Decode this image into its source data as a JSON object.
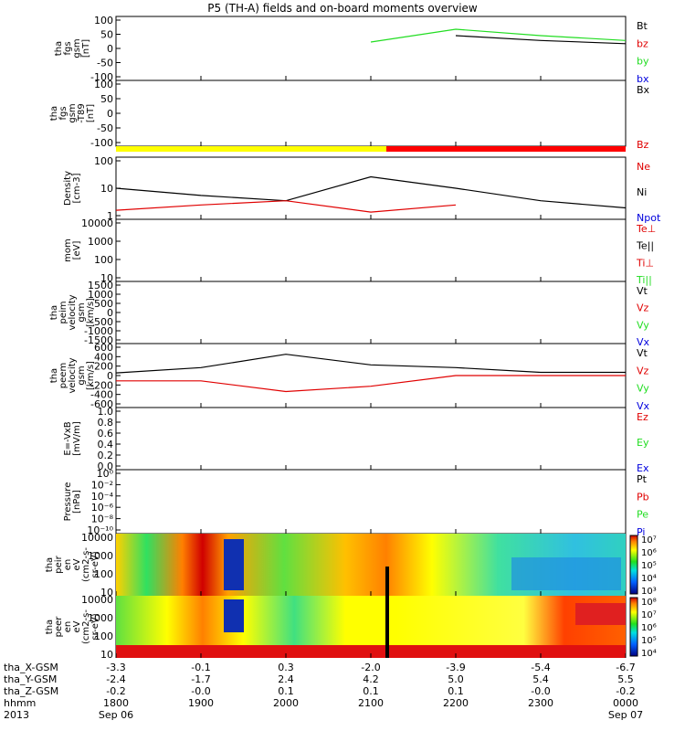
{
  "title": "P5 (TH-A) fields and on-board moments overview",
  "colors": {
    "black": "#000000",
    "red": "#e00000",
    "green": "#22dd22",
    "blue": "#0000dd",
    "yellow": "#ffff00",
    "barRed": "#ff0000"
  },
  "panels": [
    {
      "id": "fgs",
      "ylabel": [
        "tha",
        "fgs",
        "gsm",
        "[nT]"
      ],
      "ticks": [
        "100",
        "50",
        "0",
        "-50",
        "-100"
      ],
      "legend": [
        {
          "text": "Bt",
          "color": "#000000"
        },
        {
          "text": "bz",
          "color": "#e00000"
        },
        {
          "text": "by",
          "color": "#22dd22"
        },
        {
          "text": "bx",
          "color": "#0000dd"
        }
      ]
    },
    {
      "id": "fgs-t89",
      "ylabel": [
        "tha",
        "fgs",
        "gsm",
        "-T89",
        "[nT]"
      ],
      "ticks": [
        "100",
        "50",
        "0",
        "-50",
        "-100"
      ],
      "legend": [
        {
          "text": "Bx",
          "color": "#000000"
        },
        {
          "text": "Bz",
          "color": "#e00000"
        }
      ]
    },
    {
      "id": "density",
      "ylabel": [
        "Density",
        "[cm-3]"
      ],
      "ticks": [
        "100",
        "10",
        "1"
      ],
      "legend": [
        {
          "text": "Ne",
          "color": "#e00000"
        },
        {
          "text": "Ni",
          "color": "#000000"
        },
        {
          "text": "Npot",
          "color": "#0000dd"
        }
      ]
    },
    {
      "id": "temp",
      "ylabel": [
        "mom",
        "[eV]"
      ],
      "ticks": [
        "10000",
        "1000",
        "100",
        "10"
      ],
      "legend": [
        {
          "text": "Te⊥",
          "color": "#e00000"
        },
        {
          "text": "Te||",
          "color": "#000000"
        },
        {
          "text": "Ti⊥",
          "color": "#e00000"
        },
        {
          "text": "Ti||",
          "color": "#22dd22"
        }
      ]
    },
    {
      "id": "peim",
      "ylabel": [
        "tha",
        "peim",
        "velocity",
        "gsm",
        "[km/s]"
      ],
      "ticks": [
        "1500",
        "1000",
        "500",
        "0",
        "-500",
        "-1000",
        "-1500"
      ],
      "legend": [
        {
          "text": "Vt",
          "color": "#000000"
        },
        {
          "text": "Vz",
          "color": "#e00000"
        },
        {
          "text": "Vy",
          "color": "#22dd22"
        },
        {
          "text": "Vx",
          "color": "#0000dd"
        }
      ]
    },
    {
      "id": "peem",
      "ylabel": [
        "tha",
        "peem",
        "velocity",
        "gsm",
        "[km/s]"
      ],
      "ticks": [
        "600",
        "400",
        "200",
        "0",
        "-200",
        "-400",
        "-600"
      ],
      "legend": [
        {
          "text": "Vt",
          "color": "#000000"
        },
        {
          "text": "Vz",
          "color": "#e00000"
        },
        {
          "text": "Vy",
          "color": "#22dd22"
        },
        {
          "text": "Vx",
          "color": "#0000dd"
        }
      ]
    },
    {
      "id": "efield",
      "ylabel": [
        "E=-VxB",
        "[mV/m]"
      ],
      "ticks": [
        "1.0",
        "0.8",
        "0.6",
        "0.4",
        "0.2",
        "0.0"
      ],
      "legend": [
        {
          "text": "Ez",
          "color": "#e00000"
        },
        {
          "text": "Ey",
          "color": "#22dd22"
        },
        {
          "text": "Ex",
          "color": "#0000dd"
        }
      ]
    },
    {
      "id": "pressure",
      "ylabel": [
        "Pressure",
        "[nPa]"
      ],
      "ticks": [
        "10⁰",
        "10⁻²",
        "10⁻⁴",
        "10⁻⁶",
        "10⁻⁸",
        "10⁻¹⁰"
      ],
      "legend": [
        {
          "text": "Pt",
          "color": "#000000"
        },
        {
          "text": "Pb",
          "color": "#e00000"
        },
        {
          "text": "Pe",
          "color": "#22dd22"
        },
        {
          "text": "Pi",
          "color": "#0000dd"
        }
      ]
    },
    {
      "id": "peir",
      "ylabel": [
        "tha",
        "peir",
        "en",
        "eV",
        "(cm2-s-",
        "sr-eV)"
      ],
      "ticks": [
        "10000",
        "1000",
        "100",
        "10"
      ],
      "colorbar": [
        "10⁷",
        "10⁶",
        "10⁵",
        "10⁴",
        "10³"
      ]
    },
    {
      "id": "peer",
      "ylabel": [
        "tha",
        "peer",
        "en",
        "eV",
        "(cm2-s-",
        "sr-eV)"
      ],
      "ticks": [
        "10000",
        "1000",
        "100",
        "10"
      ],
      "colorbar": [
        "10⁸",
        "10⁷",
        "10⁶",
        "10⁵",
        "10⁴"
      ]
    }
  ],
  "axis": {
    "rows": [
      {
        "label": "tha_X-GSM",
        "values": [
          "-3.3",
          "-0.1",
          "0.3",
          "-2.0",
          "-3.9",
          "-5.4",
          "-6.7"
        ]
      },
      {
        "label": "tha_Y-GSM",
        "values": [
          "-2.4",
          "-1.7",
          "2.4",
          "4.2",
          "5.0",
          "5.4",
          "5.5"
        ]
      },
      {
        "label": "tha_Z-GSM",
        "values": [
          "-0.2",
          "-0.0",
          "0.1",
          "0.1",
          "0.1",
          "-0.0",
          "-0.2"
        ]
      },
      {
        "label": "hhmm",
        "values": [
          "1800",
          "1900",
          "2000",
          "2100",
          "2200",
          "2300",
          "0000"
        ]
      },
      {
        "label": "2013",
        "values": [
          "Sep 06",
          "",
          "",
          "",
          "",
          "",
          "Sep 07"
        ]
      }
    ]
  },
  "chart_data": {
    "type": "line",
    "title": "P5 (TH-A) fields and on-board moments overview",
    "x": [
      "1800",
      "1900",
      "2000",
      "2100",
      "2200",
      "2300",
      "0000"
    ],
    "xlabel": "hhmm",
    "series": [
      {
        "name": "Bt",
        "panel": "fgs",
        "values": [
          null,
          null,
          null,
          null,
          40,
          25,
          15
        ]
      },
      {
        "name": "by",
        "panel": "fgs",
        "values": [
          null,
          null,
          null,
          20,
          60,
          40,
          25
        ]
      },
      {
        "name": "Ni",
        "panel": "density",
        "values": [
          10,
          5,
          3,
          30,
          10,
          3,
          1.5
        ]
      },
      {
        "name": "Ne",
        "panel": "density",
        "values": [
          1.2,
          2,
          3,
          1,
          2,
          null,
          null
        ]
      },
      {
        "name": "Vt",
        "panel": "peem",
        "values": [
          50,
          150,
          400,
          200,
          150,
          60,
          60
        ]
      },
      {
        "name": "Vz",
        "panel": "peem",
        "values": [
          -100,
          -100,
          -300,
          -200,
          0,
          0,
          0
        ]
      }
    ],
    "ylim_density": [
      0.5,
      200
    ],
    "ylim_fgs": [
      -100,
      100
    ]
  }
}
